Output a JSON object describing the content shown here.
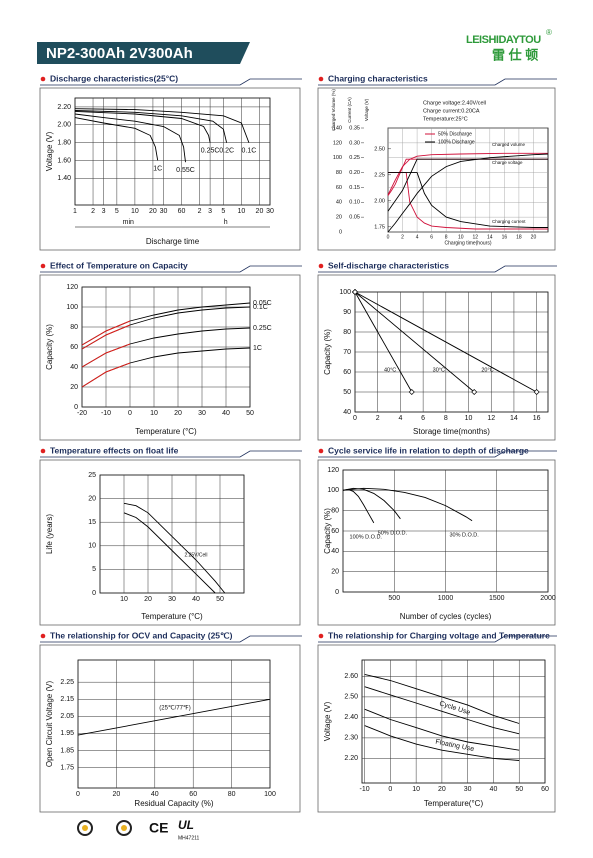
{
  "header": {
    "title": "NP2-300Ah 2V300Ah",
    "brand": "LEISHIDAYTOU",
    "registered": "®",
    "brand_cn": "雷 仕 顿"
  },
  "footer": {
    "certifications": [
      "CE",
      "UL"
    ],
    "ul_file": "MH47211"
  },
  "chart_data": [
    {
      "type": "line",
      "title": "Discharge characteristics(25°C)",
      "ylabel": "Voltage (V)",
      "xlabel": "Discharge time",
      "xlog": true,
      "xlim": [
        1,
        1800
      ],
      "xticks": [
        1,
        2,
        3,
        5,
        10,
        20,
        30,
        60,
        {
          "value": 120,
          "label": "2"
        },
        {
          "value": 180,
          "label": "3"
        },
        {
          "value": 300,
          "label": "5"
        },
        {
          "value": 600,
          "label": "10"
        },
        {
          "value": 1200,
          "label": "20"
        },
        {
          "value": 1800,
          "label": "30"
        }
      ],
      "ylim": [
        1.1,
        2.3
      ],
      "yticks": [
        {
          "value": 1.4,
          "label": "1.40"
        },
        {
          "value": 1.6,
          "label": "1.60"
        },
        {
          "value": 1.8,
          "label": "1.80"
        },
        {
          "value": 2,
          "label": "2.00"
        },
        {
          "value": 2.2,
          "label": "2.20"
        }
      ],
      "grid": true,
      "x_groups": [
        {
          "label": "min",
          "range": [
            1,
            60
          ]
        },
        {
          "label": "h",
          "range": [
            60,
            1800
          ]
        }
      ],
      "series": [
        {
          "name": "1C",
          "color": "#000000",
          "x": [
            1,
            3,
            10,
            18,
            22,
            24
          ],
          "values": [
            2.08,
            2.02,
            1.96,
            1.88,
            1.75,
            1.6
          ]
        },
        {
          "name": "0.55C",
          "color": "#000000",
          "x": [
            1,
            3,
            10,
            30,
            55,
            65,
            70
          ],
          "values": [
            2.12,
            2.08,
            2.04,
            1.98,
            1.88,
            1.75,
            1.58
          ]
        },
        {
          "name": "0.25C",
          "color": "#000000",
          "x": [
            1,
            10,
            60,
            140,
            170,
            180
          ],
          "values": [
            2.15,
            2.12,
            2.07,
            1.98,
            1.88,
            1.8
          ]
        },
        {
          "name": "0.2C",
          "color": "#000000",
          "x": [
            1,
            10,
            60,
            200,
            300,
            340
          ],
          "values": [
            2.16,
            2.14,
            2.1,
            2.04,
            1.95,
            1.8
          ]
        },
        {
          "name": "0.1C",
          "color": "#000000",
          "x": [
            1,
            10,
            60,
            300,
            600,
            800
          ],
          "values": [
            2.18,
            2.17,
            2.14,
            2.1,
            2.02,
            1.8
          ]
        }
      ]
    },
    {
      "type": "charging",
      "title": "Charging characteristics",
      "column_labels": [
        "Charged Volume (%)",
        "Current (CA)",
        "Voltage (V)"
      ],
      "notes": [
        "Charge voltage:2.40V/cell",
        "Charge current:0.20CA",
        "Temperature:25°C"
      ],
      "annotations": [
        "Charged volume",
        "Charge voltage",
        "Charging current"
      ],
      "xlabel": "Charging time(hours)",
      "xlim": [
        0,
        22
      ],
      "xticks": [
        0,
        2,
        4,
        6,
        8,
        10,
        12,
        14,
        16,
        18,
        20
      ],
      "ylim": [
        0,
        140
      ],
      "yticks": [
        0,
        20,
        40,
        60,
        80,
        100,
        120,
        140
      ],
      "y2lim": [
        1.7,
        2.7
      ],
      "y2ticks": [
        1.75,
        {
          "value": 2,
          "label": "2.00"
        },
        2.25,
        {
          "value": 2.5,
          "label": "2.50"
        }
      ],
      "y3lim": [
        0,
        0.35
      ],
      "y3ticks": [
        0.05,
        {
          "value": 0.1,
          "label": "0.10"
        },
        0.15,
        {
          "value": 0.2,
          "label": "0.20"
        },
        0.25,
        {
          "value": 0.3,
          "label": "0.30"
        },
        0.35
      ],
      "grid": true,
      "series": [
        {
          "name": "50% Discharge",
          "color": "#d0103a",
          "volume": {
            "x": [
              0,
              1,
              2,
              3,
              4,
              6,
              10,
              16,
              22
            ],
            "values": [
              50,
              70,
              88,
              98,
              102,
              104,
              105,
              106,
              106
            ]
          },
          "voltage": {
            "x": [
              0,
              0.5,
              1,
              1.5,
              2,
              2.5,
              22
            ],
            "values": [
              2.05,
              2.1,
              2.16,
              2.24,
              2.32,
              2.4,
              2.4
            ]
          },
          "current": {
            "x": [
              0,
              2.5,
              3,
              4,
              5,
              6,
              8,
              12,
              22
            ],
            "values": [
              0.2,
              0.2,
              0.1,
              0.05,
              0.03,
              0.02,
              0.015,
              0.01,
              0.01
            ]
          }
        },
        {
          "name": "100% Discharge",
          "color": "#000000",
          "volume": {
            "x": [
              0,
              1,
              2,
              3,
              4,
              6,
              8,
              10,
              14,
              20,
              22
            ],
            "values": [
              0,
              12,
              25,
              38,
              52,
              75,
              88,
              95,
              100,
              104,
              105
            ]
          },
          "voltage": {
            "x": [
              0,
              0.5,
              1,
              2,
              3,
              4,
              22
            ],
            "values": [
              1.9,
              1.95,
              2,
              2.1,
              2.25,
              2.4,
              2.4
            ]
          },
          "current": {
            "x": [
              0,
              4,
              5,
              6,
              8,
              10,
              14,
              20,
              22
            ],
            "values": [
              0.2,
              0.2,
              0.13,
              0.09,
              0.05,
              0.035,
              0.02,
              0.015,
              0.015
            ]
          }
        }
      ]
    },
    {
      "type": "line",
      "title": "Effect of Temperature on Capacity",
      "ylabel": "Capacity (%)",
      "xlabel": "Temperature (°C)",
      "xlim": [
        -20,
        50
      ],
      "xticks": [
        -20,
        -10,
        0,
        10,
        20,
        30,
        40,
        50
      ],
      "ylim": [
        0,
        120
      ],
      "yticks": [
        0,
        20,
        40,
        60,
        80,
        100,
        120
      ],
      "grid": true,
      "cold_limit": 0,
      "cold_color": "#e0201b",
      "series": [
        {
          "name": "0.05C",
          "color": "#000000",
          "x": [
            -20,
            -10,
            0,
            10,
            20,
            30,
            40,
            50
          ],
          "values": [
            62,
            76,
            86,
            92,
            97,
            100,
            102,
            104
          ]
        },
        {
          "name": "0.1C",
          "color": "#000000",
          "x": [
            -20,
            -10,
            0,
            10,
            20,
            30,
            40,
            50
          ],
          "values": [
            58,
            72,
            82,
            89,
            94,
            97,
            99,
            100
          ]
        },
        {
          "name": "0.25C",
          "color": "#000000",
          "x": [
            -20,
            -10,
            0,
            10,
            20,
            30,
            40,
            50
          ],
          "values": [
            40,
            54,
            63,
            69,
            73,
            76,
            78,
            79
          ]
        },
        {
          "name": "1C",
          "color": "#000000",
          "x": [
            -20,
            -10,
            0,
            10,
            20,
            30,
            40,
            50
          ],
          "values": [
            20,
            35,
            44,
            50,
            54,
            56,
            58,
            59
          ]
        }
      ]
    },
    {
      "type": "line",
      "title": "Self-discharge characteristics",
      "ylabel": "Capacity (%)",
      "xlabel": "Storage time(months)",
      "xlim": [
        0,
        17
      ],
      "xticks": [
        0,
        2,
        4,
        6,
        8,
        10,
        12,
        14,
        16
      ],
      "ylim": [
        40,
        100
      ],
      "yticks": [
        40,
        50,
        60,
        70,
        80,
        90,
        100
      ],
      "grid": true,
      "markers": true,
      "series": [
        {
          "name": "40°C",
          "color": "#000000",
          "x": [
            0,
            5
          ],
          "values": [
            100,
            50
          ]
        },
        {
          "name": "30°C",
          "color": "#000000",
          "x": [
            0,
            10.5
          ],
          "values": [
            100,
            50
          ]
        },
        {
          "name": "20°C",
          "color": "#000000",
          "x": [
            0,
            16
          ],
          "values": [
            100,
            50
          ]
        }
      ]
    },
    {
      "type": "band",
      "title": "Temperature effects on float life",
      "ylabel": "Life (years)",
      "xlabel": "Temperature (°C)",
      "xlim": [
        0,
        60
      ],
      "xticks": [
        10,
        20,
        30,
        40,
        50
      ],
      "ylim": [
        0,
        25
      ],
      "yticks": [
        0,
        5,
        10,
        15,
        20,
        25
      ],
      "grid": true,
      "label_rotate": false,
      "bands": [
        {
          "name": "2.25V/Cell",
          "x": [
            10,
            15,
            20,
            30,
            40,
            48,
            52
          ],
          "upper": [
            19,
            18.5,
            17,
            12,
            7,
            2.5,
            0
          ],
          "lower": [
            17,
            16,
            14,
            9,
            4,
            0,
            null
          ]
        }
      ]
    },
    {
      "type": "line",
      "title": "Cycle service life in relation to depth of discharge",
      "ylabel": "Capacity (%)",
      "xlabel": "Number of cycles (cycles)",
      "xlim": [
        0,
        2000
      ],
      "xticks": [
        500,
        1000,
        1500,
        2000
      ],
      "ylim": [
        0,
        120
      ],
      "yticks": [
        0,
        20,
        40,
        60,
        80,
        100,
        120
      ],
      "grid": true,
      "series": [
        {
          "name": "100% D.O.D.",
          "color": "#000000",
          "x": [
            0,
            50,
            100,
            150,
            200,
            250,
            300
          ],
          "values": [
            100,
            101,
            99,
            94,
            86,
            77,
            68
          ]
        },
        {
          "name": "50% D.O.D.",
          "color": "#000000",
          "x": [
            0,
            100,
            200,
            300,
            400,
            500,
            560
          ],
          "values": [
            100,
            102,
            101,
            97,
            90,
            80,
            72
          ]
        },
        {
          "name": "30% D.O.D.",
          "color": "#000000",
          "x": [
            0,
            200,
            400,
            600,
            800,
            1000,
            1200,
            1260
          ],
          "values": [
            100,
            102,
            101,
            98,
            93,
            85,
            74,
            70
          ]
        }
      ]
    },
    {
      "type": "line",
      "title": "The relationship  for OCV and Capacity (25℃)",
      "ylabel": "Open Circuit Voltage (V)",
      "xlabel": "Residual Capacity (%)",
      "xlim": [
        0,
        100
      ],
      "xticks": [
        0,
        20,
        40,
        60,
        80,
        100
      ],
      "ylim": [
        1.63,
        2.38
      ],
      "yticks": [
        1.75,
        1.85,
        1.95,
        2.05,
        2.15,
        2.25
      ],
      "grid": true,
      "annotation": "(25℃/77℉)",
      "series": [
        {
          "color": "#000000",
          "x": [
            0,
            100
          ],
          "values": [
            1.94,
            2.15
          ]
        }
      ]
    },
    {
      "type": "band",
      "title": "The relationship for Charging voltage and Temperature",
      "ylabel": "Voltage (V)",
      "xlabel": "Temperature(°C)",
      "xlim": [
        -11,
        60
      ],
      "xticks": [
        -10,
        0,
        10,
        20,
        30,
        40,
        50,
        60
      ],
      "ylim": [
        2.08,
        2.68
      ],
      "yticks": [
        {
          "value": 2.2,
          "label": "2.20"
        },
        {
          "value": 2.3,
          "label": "2.30"
        },
        {
          "value": 2.4,
          "label": "2.40"
        },
        {
          "value": 2.5,
          "label": "2.50"
        },
        {
          "value": 2.6,
          "label": "2.60"
        }
      ],
      "grid": true,
      "label_rotate": true,
      "bands": [
        {
          "name": "Cycle Use",
          "x": [
            -10,
            0,
            10,
            20,
            30,
            40,
            50
          ],
          "upper": [
            2.61,
            2.58,
            2.54,
            2.5,
            2.46,
            2.41,
            2.37
          ],
          "lower": [
            2.55,
            2.51,
            2.47,
            2.43,
            2.39,
            2.35,
            2.32
          ]
        },
        {
          "name": "Floating Use",
          "x": [
            -10,
            0,
            10,
            20,
            30,
            40,
            50
          ],
          "upper": [
            2.44,
            2.39,
            2.35,
            2.31,
            2.28,
            2.26,
            2.24
          ],
          "lower": [
            2.36,
            2.31,
            2.27,
            2.24,
            2.22,
            2.2,
            2.19
          ]
        }
      ]
    }
  ]
}
